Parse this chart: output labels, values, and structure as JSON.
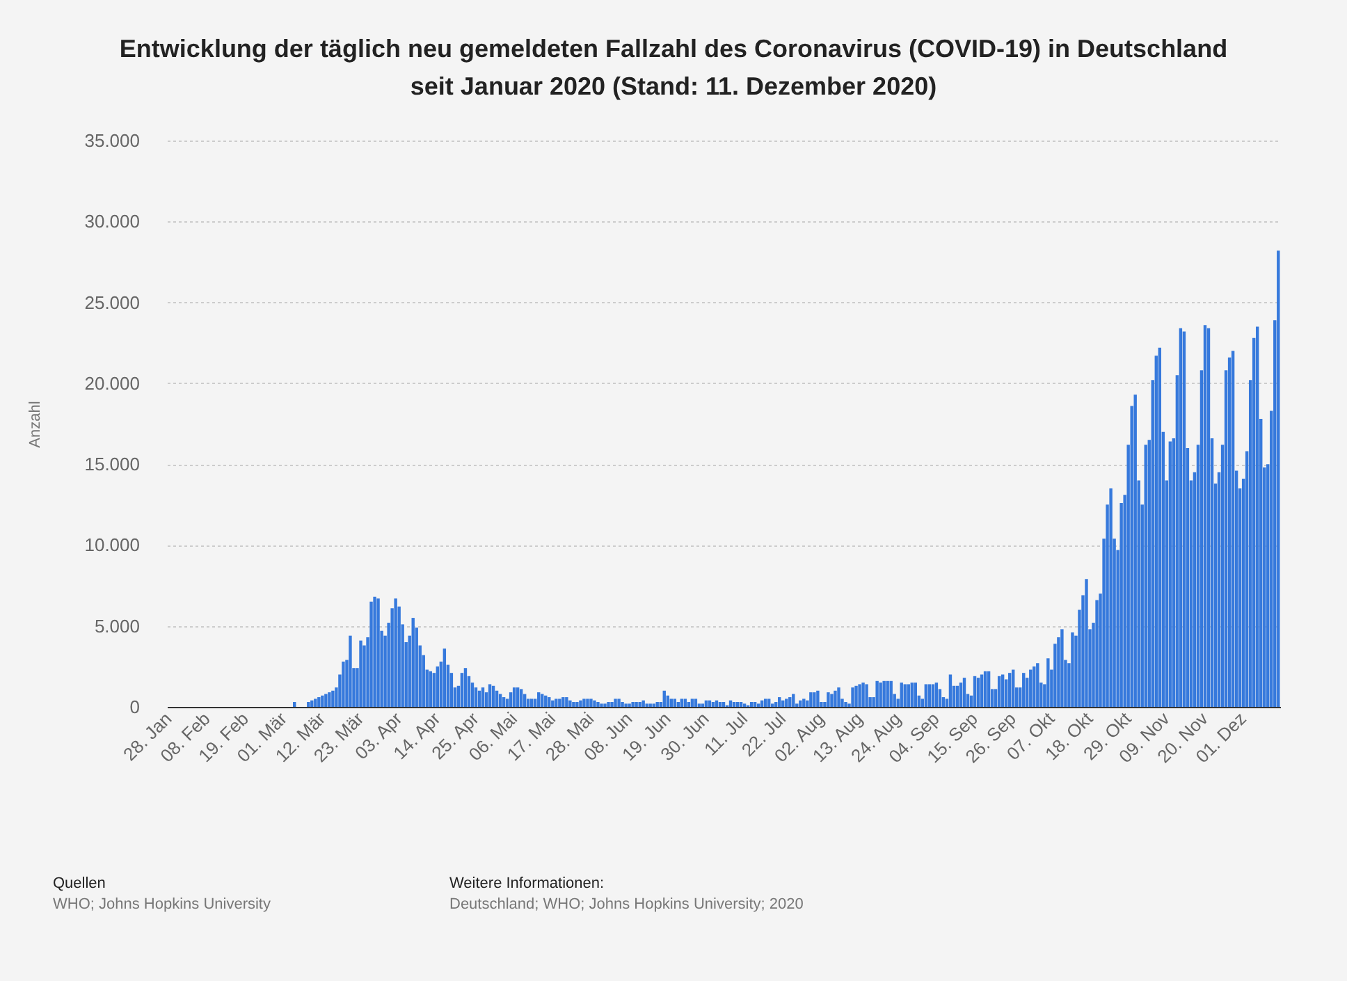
{
  "chart_data": {
    "type": "bar",
    "title": "Entwicklung der täglich neu gemeldeten Fallzahl des Coronavirus (COVID-19) in Deutschland seit Januar 2020 (Stand: 11. Dezember 2020)",
    "ylabel": "Anzahl",
    "color": "#3679dc",
    "grid": "y",
    "ylim": [
      0,
      35000
    ],
    "yticks": [
      {
        "value": 0,
        "label": "0"
      },
      {
        "value": 5000,
        "label": "5.000"
      },
      {
        "value": 10000,
        "label": "10.000"
      },
      {
        "value": 15000,
        "label": "15.000"
      },
      {
        "value": 20000,
        "label": "20.000"
      },
      {
        "value": 25000,
        "label": "25.000"
      },
      {
        "value": 30000,
        "label": "30.000"
      },
      {
        "value": 35000,
        "label": "35.000"
      }
    ],
    "annotations": [
      "Quellen",
      "WHO; Johns Hopkins University",
      "Weitere Informationen:",
      "Deutschland; WHO; Johns Hopkins University; 2020"
    ],
    "categories": [
      "28. Jan",
      null,
      null,
      null,
      null,
      null,
      null,
      null,
      null,
      null,
      null,
      "08. Feb",
      null,
      null,
      null,
      null,
      null,
      null,
      null,
      null,
      null,
      null,
      "19. Feb",
      null,
      null,
      null,
      null,
      null,
      null,
      null,
      null,
      null,
      null,
      "01. Mär",
      null,
      null,
      null,
      null,
      null,
      null,
      null,
      null,
      null,
      null,
      "12. Mär",
      null,
      null,
      null,
      null,
      null,
      null,
      null,
      null,
      null,
      null,
      "23. Mär",
      null,
      null,
      null,
      null,
      null,
      null,
      null,
      null,
      null,
      null,
      "03. Apr",
      null,
      null,
      null,
      null,
      null,
      null,
      null,
      null,
      null,
      null,
      "14. Apr",
      null,
      null,
      null,
      null,
      null,
      null,
      null,
      null,
      null,
      null,
      "25. Apr",
      null,
      null,
      null,
      null,
      null,
      null,
      null,
      null,
      null,
      null,
      "06. Mai",
      null,
      null,
      null,
      null,
      null,
      null,
      null,
      null,
      null,
      null,
      "17. Mai",
      null,
      null,
      null,
      null,
      null,
      null,
      null,
      null,
      null,
      null,
      "28. Mai",
      null,
      null,
      null,
      null,
      null,
      null,
      null,
      null,
      null,
      null,
      "08. Jun",
      null,
      null,
      null,
      null,
      null,
      null,
      null,
      null,
      null,
      null,
      "19. Jun",
      null,
      null,
      null,
      null,
      null,
      null,
      null,
      null,
      null,
      null,
      "30. Jun",
      null,
      null,
      null,
      null,
      null,
      null,
      null,
      null,
      null,
      null,
      "11. Jul",
      null,
      null,
      null,
      null,
      null,
      null,
      null,
      null,
      null,
      null,
      "22. Jul",
      null,
      null,
      null,
      null,
      null,
      null,
      null,
      null,
      null,
      null,
      "02. Aug",
      null,
      null,
      null,
      null,
      null,
      null,
      null,
      null,
      null,
      null,
      "13. Aug",
      null,
      null,
      null,
      null,
      null,
      null,
      null,
      null,
      null,
      null,
      "24. Aug",
      null,
      null,
      null,
      null,
      null,
      null,
      null,
      null,
      null,
      null,
      "04. Sep",
      null,
      null,
      null,
      null,
      null,
      null,
      null,
      null,
      null,
      null,
      "15. Sep",
      null,
      null,
      null,
      null,
      null,
      null,
      null,
      null,
      null,
      null,
      "26. Sep",
      null,
      null,
      null,
      null,
      null,
      null,
      null,
      null,
      null,
      null,
      "07. Okt",
      null,
      null,
      null,
      null,
      null,
      null,
      null,
      null,
      null,
      null,
      "18. Okt",
      null,
      null,
      null,
      null,
      null,
      null,
      null,
      null,
      null,
      null,
      "29. Okt",
      null,
      null,
      null,
      null,
      null,
      null,
      null,
      null,
      null,
      null,
      "09. Nov",
      null,
      null,
      null,
      null,
      null,
      null,
      null,
      null,
      null,
      null,
      "20. Nov",
      null,
      null,
      null,
      null,
      null,
      null,
      null,
      null,
      null,
      null,
      "01. Dez",
      null,
      null,
      null,
      null,
      null,
      null,
      null,
      null,
      null,
      null
    ],
    "values": [
      0,
      0,
      0,
      0,
      0,
      0,
      0,
      0,
      0,
      0,
      0,
      0,
      0,
      0,
      0,
      0,
      0,
      0,
      0,
      0,
      0,
      0,
      0,
      0,
      0,
      0,
      0,
      0,
      0,
      0,
      0,
      0,
      0,
      0,
      0,
      0,
      300,
      0,
      0,
      0,
      300,
      400,
      500,
      600,
      700,
      800,
      900,
      1000,
      1200,
      2000,
      2800,
      2900,
      4400,
      2400,
      2400,
      4100,
      3800,
      4300,
      6500,
      6800,
      6700,
      4700,
      4400,
      5200,
      6100,
      6700,
      6200,
      5100,
      4000,
      4400,
      5500,
      4900,
      3800,
      3200,
      2300,
      2200,
      2100,
      2500,
      2800,
      3600,
      2600,
      2100,
      1200,
      1300,
      2100,
      2400,
      1900,
      1500,
      1200,
      1000,
      1200,
      900,
      1400,
      1300,
      1000,
      800,
      600,
      500,
      900,
      1200,
      1200,
      1100,
      800,
      500,
      500,
      500,
      900,
      800,
      700,
      600,
      400,
      500,
      500,
      600,
      600,
      400,
      300,
      300,
      400,
      500,
      500,
      500,
      400,
      300,
      200,
      200,
      300,
      300,
      500,
      500,
      300,
      200,
      200,
      300,
      300,
      300,
      400,
      200,
      200,
      200,
      300,
      300,
      1000,
      700,
      500,
      500,
      300,
      500,
      500,
      300,
      500,
      500,
      200,
      200,
      400,
      400,
      300,
      400,
      300,
      300,
      100,
      400,
      300,
      300,
      300,
      200,
      100,
      300,
      300,
      200,
      400,
      500,
      500,
      200,
      300,
      600,
      400,
      500,
      600,
      800,
      200,
      400,
      500,
      400,
      900,
      900,
      1000,
      300,
      300,
      900,
      800,
      1000,
      1200,
      500,
      300,
      200,
      1200,
      1300,
      1400,
      1500,
      1400,
      600,
      600,
      1600,
      1500,
      1600,
      1600,
      1600,
      800,
      500,
      1500,
      1400,
      1400,
      1500,
      1500,
      700,
      500,
      1400,
      1400,
      1400,
      1500,
      1100,
      600,
      500,
      2000,
      1300,
      1300,
      1500,
      1800,
      800,
      700,
      1900,
      1800,
      2000,
      2200,
      2200,
      1100,
      1100,
      1900,
      2000,
      1700,
      2100,
      2300,
      1200,
      1200,
      2100,
      1800,
      2300,
      2500,
      2700,
      1500,
      1400,
      3000,
      2300,
      3900,
      4300,
      4800,
      2900,
      2700,
      4600,
      4400,
      6000,
      6900,
      7900,
      4800,
      5200,
      6600,
      7000,
      10400,
      12500,
      13500,
      10400,
      9700,
      12600,
      13100,
      16200,
      18600,
      19300,
      14000,
      12500,
      16200,
      16500,
      20200,
      21700,
      22200,
      17000,
      14000,
      16400,
      16600,
      20500,
      23400,
      23200,
      16000,
      14000,
      14500,
      16200,
      20800,
      23600,
      23400,
      16600,
      13800,
      14500,
      16200,
      20800,
      21600,
      22000,
      14600,
      13500,
      14100,
      15800,
      20200,
      22800,
      23500,
      17800,
      14800,
      15000,
      18300,
      23900,
      28200
    ]
  }
}
